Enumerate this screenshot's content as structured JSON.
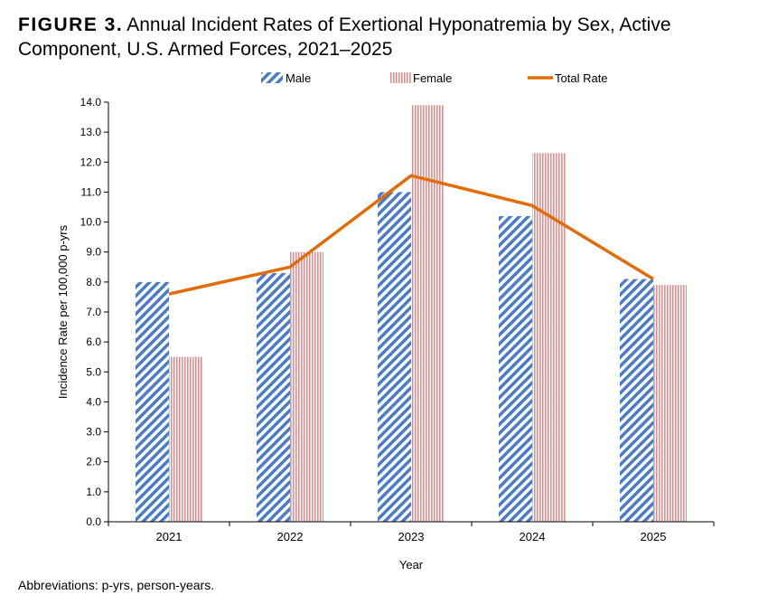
{
  "figure": {
    "label": "FIGURE 3.",
    "title": "Annual Incident Rates of Exertional Hyponatremia by Sex, Active Component, U.S. Armed Forces, 2021–2025"
  },
  "footnote": "Abbreviations: p-yrs, person-years.",
  "colors": {
    "male": "#4a7bc8",
    "female": "#e08f8f",
    "total": "#e36c0a"
  },
  "chart_data": {
    "type": "bar",
    "categories": [
      "2021",
      "2022",
      "2023",
      "2024",
      "2025"
    ],
    "series": [
      {
        "name": "Male",
        "type": "bar",
        "values": [
          8.0,
          8.3,
          11.0,
          10.2,
          8.1
        ]
      },
      {
        "name": "Female",
        "type": "bar",
        "values": [
          5.5,
          9.0,
          13.9,
          12.3,
          7.9
        ]
      },
      {
        "name": "Total Rate",
        "type": "line",
        "values": [
          7.6,
          8.5,
          11.55,
          10.55,
          8.1
        ]
      }
    ],
    "xlabel": "Year",
    "ylabel": "Incidence Rate per 100,000 p-yrs",
    "ylim": [
      0,
      14
    ],
    "yticks": [
      "0.0",
      "1.0",
      "2.0",
      "3.0",
      "4.0",
      "5.0",
      "6.0",
      "7.0",
      "8.0",
      "9.0",
      "10.0",
      "11.0",
      "12.0",
      "13.0",
      "14.0"
    ],
    "legend_position": "top",
    "grid": false
  }
}
